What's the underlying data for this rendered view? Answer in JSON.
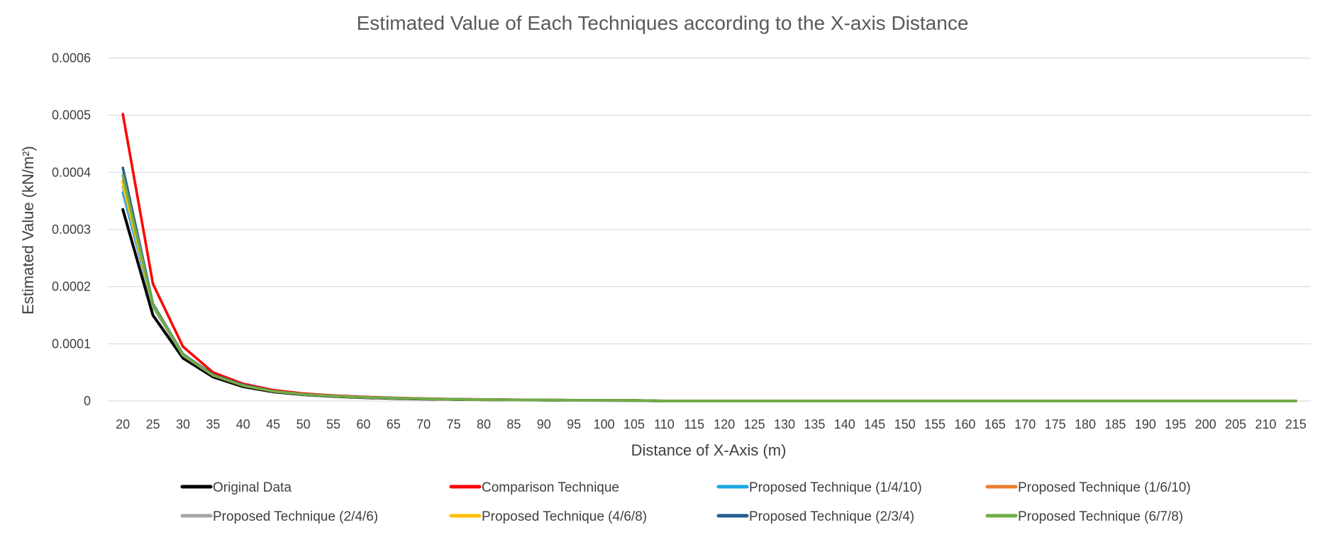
{
  "chart_data": {
    "type": "line",
    "title": "Estimated Value of Each Techniques according to the X-axis Distance",
    "xlabel": "Distance of X-Axis (m)",
    "ylabel": "Estimated Value (kN/m²)",
    "ylim": [
      0,
      0.0006
    ],
    "yticks": [
      "0",
      "0.0001",
      "0.0002",
      "0.0003",
      "0.0004",
      "0.0005",
      "0.0006"
    ],
    "grid": true,
    "legend_position": "bottom",
    "x": [
      20,
      25,
      30,
      35,
      40,
      45,
      50,
      55,
      60,
      65,
      70,
      75,
      80,
      85,
      90,
      95,
      100,
      105,
      110,
      115,
      120,
      125,
      130,
      135,
      140,
      145,
      150,
      155,
      160,
      165,
      170,
      175,
      180,
      185,
      190,
      195,
      200,
      205,
      210,
      215
    ],
    "series": [
      {
        "name": "Original Data",
        "color": "#000000",
        "values": [
          0.000335,
          0.00015,
          7.5e-05,
          4.2e-05,
          2.5e-05,
          1.6e-05,
          1.1e-05,
          8e-06,
          6e-06,
          4.5e-06,
          3.5e-06,
          2.8e-06,
          2.3e-06,
          1.9e-06,
          1.6e-06,
          1.3e-06,
          1.1e-06,
          1e-06,
          0,
          0,
          0,
          0,
          0,
          0,
          0,
          0,
          0,
          0,
          0,
          0,
          0,
          0,
          0,
          0,
          0,
          0,
          0,
          0,
          0,
          0
        ]
      },
      {
        "name": "Comparison Technique",
        "color": "#ff0000",
        "values": [
          0.000502,
          0.000205,
          9.5e-05,
          5e-05,
          3e-05,
          1.9e-05,
          1.3e-05,
          9.5e-06,
          7.2e-06,
          5.5e-06,
          4.2e-06,
          3.3e-06,
          2.7e-06,
          2.2e-06,
          1.8e-06,
          1.5e-06,
          1.3e-06,
          1.1e-06,
          0,
          0,
          0,
          0,
          0,
          0,
          0,
          0,
          0,
          0,
          0,
          0,
          0,
          0,
          0,
          0,
          0,
          0,
          0,
          0,
          0,
          0
        ]
      },
      {
        "name": "Proposed Technique (1/4/10)",
        "color": "#1aa7e6",
        "values": [
          0.000365,
          0.000165,
          8e-05,
          4.5e-05,
          2.7e-05,
          1.7e-05,
          1.15e-05,
          8.5e-06,
          6.4e-06,
          4.9e-06,
          3.8e-06,
          3e-06,
          2.4e-06,
          2e-06,
          1.7e-06,
          1.4e-06,
          1.2e-06,
          1e-06,
          0,
          0,
          0,
          0,
          0,
          0,
          0,
          0,
          0,
          0,
          0,
          0,
          0,
          0,
          0,
          0,
          0,
          0,
          0,
          0,
          0,
          0
        ]
      },
      {
        "name": "Proposed Technique (1/6/10)",
        "color": "#ed7d31",
        "values": [
          0.000385,
          0.000168,
          8.1e-05,
          4.5e-05,
          2.7e-05,
          1.7e-05,
          1.15e-05,
          8.5e-06,
          6.4e-06,
          4.9e-06,
          3.8e-06,
          3e-06,
          2.4e-06,
          2e-06,
          1.7e-06,
          1.4e-06,
          1.2e-06,
          1e-06,
          0,
          0,
          0,
          0,
          0,
          0,
          0,
          0,
          0,
          0,
          0,
          0,
          0,
          0,
          0,
          0,
          0,
          0,
          0,
          0,
          0,
          0
        ]
      },
      {
        "name": "Proposed Technique (2/4/6)",
        "color": "#a5a5a5",
        "values": [
          0.000375,
          0.000166,
          8e-05,
          4.5e-05,
          2.7e-05,
          1.7e-05,
          1.15e-05,
          8.5e-06,
          6.4e-06,
          4.9e-06,
          3.8e-06,
          3e-06,
          2.4e-06,
          2e-06,
          1.7e-06,
          1.4e-06,
          1.2e-06,
          1e-06,
          0,
          0,
          0,
          0,
          0,
          0,
          0,
          0,
          0,
          0,
          0,
          0,
          0,
          0,
          0,
          0,
          0,
          0,
          0,
          0,
          0,
          0
        ]
      },
      {
        "name": "Proposed Technique (4/6/8)",
        "color": "#ffc000",
        "values": [
          0.000382,
          0.000167,
          8.1e-05,
          4.5e-05,
          2.7e-05,
          1.7e-05,
          1.15e-05,
          8.5e-06,
          6.4e-06,
          4.9e-06,
          3.8e-06,
          3e-06,
          2.4e-06,
          2e-06,
          1.7e-06,
          1.4e-06,
          1.2e-06,
          1e-06,
          0,
          0,
          0,
          0,
          0,
          0,
          0,
          0,
          0,
          0,
          0,
          0,
          0,
          0,
          0,
          0,
          0,
          0,
          0,
          0,
          0,
          0
        ]
      },
      {
        "name": "Proposed Technique (2/3/4)",
        "color": "#255e91",
        "values": [
          0.000408,
          0.00017,
          8.2e-05,
          4.6e-05,
          2.8e-05,
          1.7e-05,
          1.15e-05,
          8.5e-06,
          6.4e-06,
          4.9e-06,
          3.8e-06,
          3e-06,
          2.4e-06,
          2e-06,
          1.7e-06,
          1.4e-06,
          1.2e-06,
          1e-06,
          0,
          0,
          0,
          0,
          0,
          0,
          0,
          0,
          0,
          0,
          0,
          0,
          0,
          0,
          0,
          0,
          0,
          0,
          0,
          0,
          0,
          0
        ]
      },
      {
        "name": "Proposed Technique (6/7/8)",
        "color": "#70ad47",
        "values": [
          0.000395,
          0.000168,
          8.1e-05,
          4.5e-05,
          2.7e-05,
          1.7e-05,
          1.15e-05,
          8.5e-06,
          6.4e-06,
          4.9e-06,
          3.8e-06,
          3e-06,
          2.4e-06,
          2e-06,
          1.7e-06,
          1.4e-06,
          1.2e-06,
          1e-06,
          0,
          0,
          0,
          0,
          0,
          0,
          0,
          0,
          0,
          0,
          0,
          0,
          0,
          0,
          0,
          0,
          0,
          0,
          0,
          0,
          0,
          0
        ]
      }
    ]
  }
}
